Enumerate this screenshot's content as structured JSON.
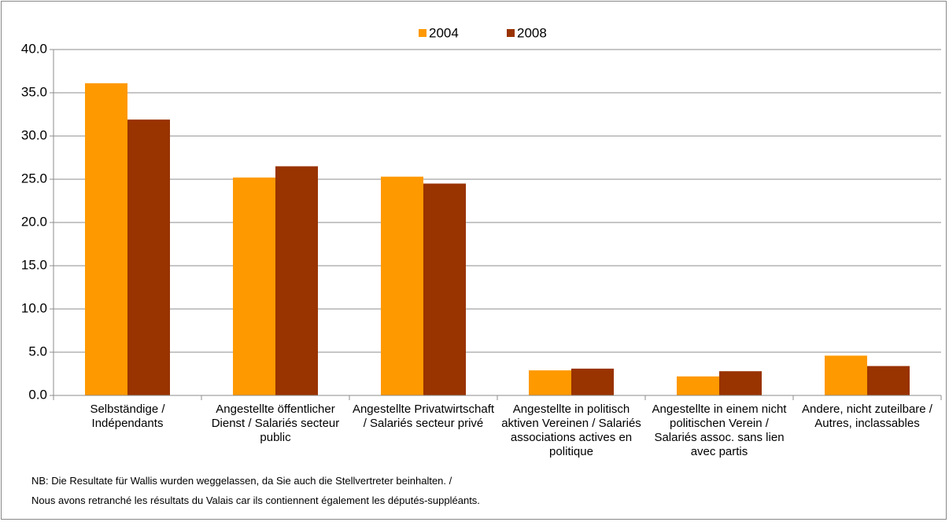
{
  "chart_data": {
    "type": "bar",
    "categories": [
      "Selbständige / Indépendants",
      "Angestellte öffentlicher Dienst / Salariés secteur public",
      "Angestellte Privatwirtschaft / Salariés secteur privé",
      "Angestellte in politisch aktiven Vereinen / Salariés associations actives en politique",
      "Angestellte in einem nicht politischen Verein / Salariés assoc. sans lien avec partis",
      "Andere, nicht zuteilbare / Autres, inclassables"
    ],
    "series": [
      {
        "name": "2004",
        "color": "#ff9900",
        "values": [
          36.1,
          25.2,
          25.3,
          2.9,
          2.2,
          4.6
        ]
      },
      {
        "name": "2008",
        "color": "#993300",
        "values": [
          31.9,
          26.5,
          24.5,
          3.1,
          2.8,
          3.4
        ]
      }
    ],
    "ylim": [
      0,
      40
    ],
    "yticks": [
      {
        "value": 0,
        "label": "0.0"
      },
      {
        "value": 5,
        "label": "5.0"
      },
      {
        "value": 10,
        "label": "10.0"
      },
      {
        "value": 15,
        "label": "15.0"
      },
      {
        "value": 20,
        "label": "20.0"
      },
      {
        "value": 25,
        "label": "25.0"
      },
      {
        "value": 30,
        "label": "30.0"
      },
      {
        "value": 35,
        "label": "35.0"
      },
      {
        "value": 40,
        "label": "40.0"
      }
    ],
    "grid": true,
    "legend": "top",
    "notes": [
      "NB: Die Resultate für Wallis wurden weggelassen, da Sie auch die Stellvertreter beinhalten. /",
      "Nous avons retranché les résultats du Valais car ils contiennent également les députés-suppléants."
    ]
  }
}
